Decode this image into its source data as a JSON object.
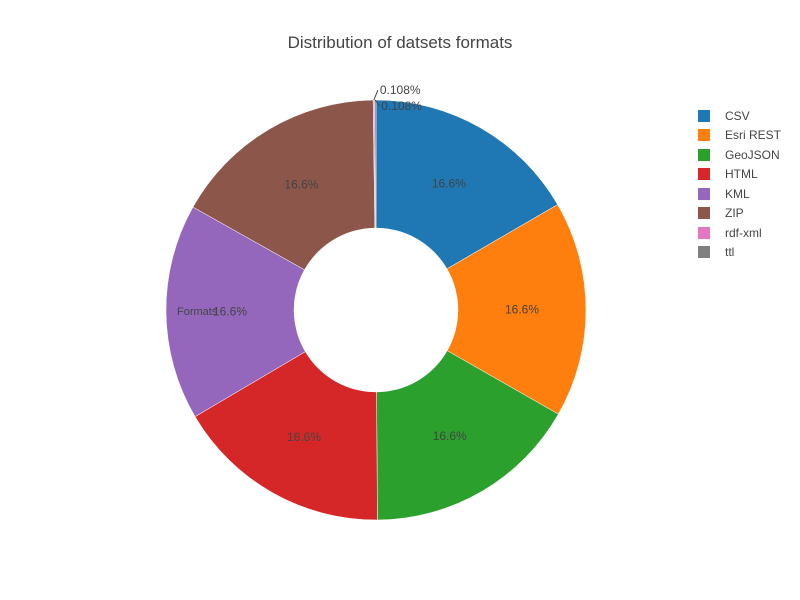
{
  "chart_data": {
    "type": "pie",
    "title": "Distribution of datsets formats",
    "hole_label": "Formats",
    "categories": [
      "CSV",
      "Esri REST",
      "GeoJSON",
      "HTML",
      "KML",
      "ZIP",
      "rdf-xml",
      "ttl"
    ],
    "values": [
      16.6,
      16.6,
      16.6,
      16.6,
      16.6,
      16.6,
      0.108,
      0.108
    ],
    "labels": [
      "16.6%",
      "16.6%",
      "16.6%",
      "16.6%",
      "16.6%",
      "16.6%",
      "0.108%",
      "0.108%"
    ],
    "colors": [
      "#1f77b4",
      "#ff7f0e",
      "#2ca02c",
      "#d62728",
      "#9467bd",
      "#8c564b",
      "#e377c2",
      "#7f7f7f"
    ],
    "direction": "clockwise",
    "legend_position": "right"
  }
}
